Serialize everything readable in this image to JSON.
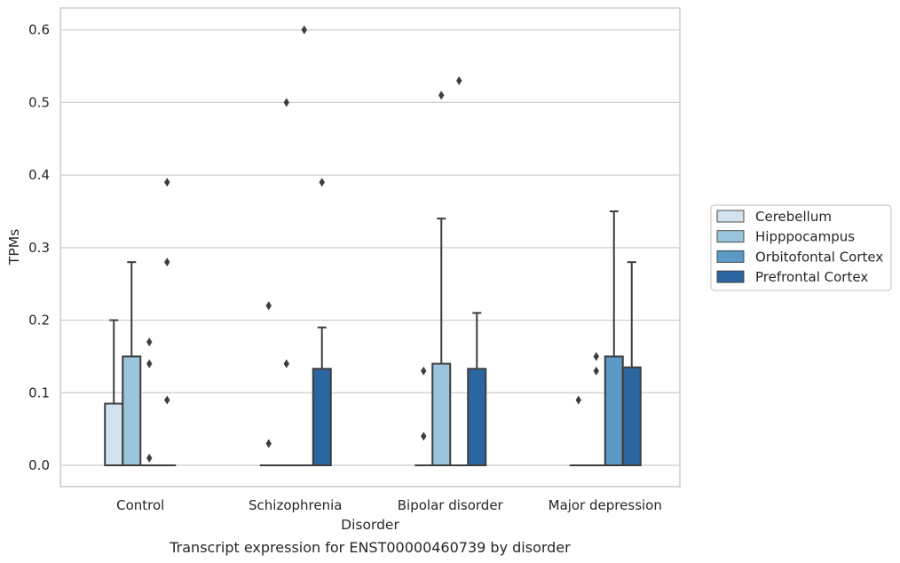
{
  "chart_data": {
    "type": "box",
    "title": "",
    "caption": "Transcript expression for ENST00000460739 by disorder",
    "xlabel": "Disorder",
    "ylabel": "TPMs",
    "ylim": [
      -0.03,
      0.63
    ],
    "yticks": [
      0.0,
      0.1,
      0.2,
      0.3,
      0.4,
      0.5,
      0.6
    ],
    "ytick_labels": [
      "0.0",
      "0.1",
      "0.2",
      "0.3",
      "0.4",
      "0.5",
      "0.6"
    ],
    "grid": "horizontal",
    "legend_position": "right",
    "categories": [
      "Control",
      "Schizophrenia",
      "Bipolar disorder",
      "Major depression"
    ],
    "series": [
      {
        "name": "Cerebellum",
        "color": "#d2e2ef",
        "boxes": [
          {
            "q1": 0.0,
            "median": 0.0,
            "q3": 0.085,
            "whisker_low": 0.0,
            "whisker_high": 0.2,
            "outliers": []
          },
          {
            "q1": 0.0,
            "median": 0.0,
            "q3": 0.0,
            "whisker_low": 0.0,
            "whisker_high": 0.0,
            "outliers": [
              0.22,
              0.03
            ]
          },
          {
            "q1": 0.0,
            "median": 0.0,
            "q3": 0.0,
            "whisker_low": 0.0,
            "whisker_high": 0.0,
            "outliers": [
              0.13,
              0.04
            ]
          },
          {
            "q1": 0.0,
            "median": 0.0,
            "q3": 0.0,
            "whisker_low": 0.0,
            "whisker_high": 0.0,
            "outliers": [
              0.09
            ]
          }
        ]
      },
      {
        "name": "Hipppocampus",
        "color": "#9ac3dc",
        "boxes": [
          {
            "q1": 0.0,
            "median": 0.0,
            "q3": 0.15,
            "whisker_low": 0.0,
            "whisker_high": 0.28,
            "outliers": []
          },
          {
            "q1": 0.0,
            "median": 0.0,
            "q3": 0.0,
            "whisker_low": 0.0,
            "whisker_high": 0.0,
            "outliers": [
              0.5,
              0.14
            ]
          },
          {
            "q1": 0.0,
            "median": 0.0,
            "q3": 0.14,
            "whisker_low": 0.0,
            "whisker_high": 0.34,
            "outliers": [
              0.51
            ]
          },
          {
            "q1": 0.0,
            "median": 0.0,
            "q3": 0.0,
            "whisker_low": 0.0,
            "whisker_high": 0.0,
            "outliers": [
              0.15,
              0.13
            ]
          }
        ]
      },
      {
        "name": "Orbitofontal Cortex",
        "color": "#5a9ac5",
        "boxes": [
          {
            "q1": 0.0,
            "median": 0.0,
            "q3": 0.0,
            "whisker_low": 0.0,
            "whisker_high": 0.0,
            "outliers": [
              0.17,
              0.14,
              0.01
            ]
          },
          {
            "q1": 0.0,
            "median": 0.0,
            "q3": 0.0,
            "whisker_low": 0.0,
            "whisker_high": 0.0,
            "outliers": [
              0.6
            ]
          },
          {
            "q1": 0.0,
            "median": 0.0,
            "q3": 0.0,
            "whisker_low": 0.0,
            "whisker_high": 0.0,
            "outliers": [
              0.53
            ]
          },
          {
            "q1": 0.0,
            "median": 0.0,
            "q3": 0.15,
            "whisker_low": 0.0,
            "whisker_high": 0.35,
            "outliers": []
          }
        ]
      },
      {
        "name": "Prefrontal Cortex",
        "color": "#2c66a0",
        "boxes": [
          {
            "q1": 0.0,
            "median": 0.0,
            "q3": 0.0,
            "whisker_low": 0.0,
            "whisker_high": 0.0,
            "outliers": [
              0.39,
              0.28,
              0.09
            ]
          },
          {
            "q1": 0.0,
            "median": 0.0,
            "q3": 0.133,
            "whisker_low": 0.0,
            "whisker_high": 0.19,
            "outliers": [
              0.39
            ]
          },
          {
            "q1": 0.0,
            "median": 0.0,
            "q3": 0.133,
            "whisker_low": 0.0,
            "whisker_high": 0.21,
            "outliers": []
          },
          {
            "q1": 0.0,
            "median": 0.0,
            "q3": 0.135,
            "whisker_low": 0.0,
            "whisker_high": 0.28,
            "outliers": []
          }
        ]
      }
    ],
    "colors": {
      "line": "#3d3d3d",
      "grid": "#cccccc",
      "frame": "#cccccc",
      "text": "#262626"
    }
  }
}
